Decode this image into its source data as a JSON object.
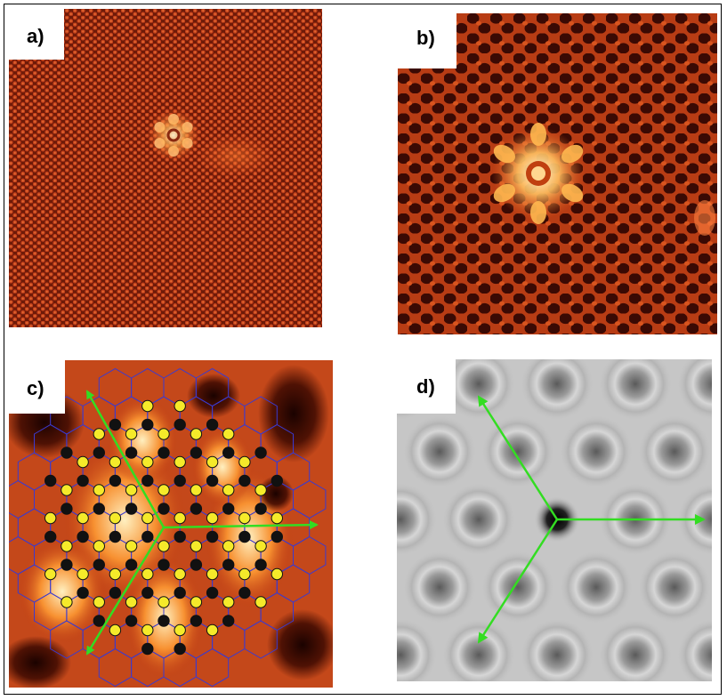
{
  "figure": {
    "panels": [
      {
        "id": "a",
        "label": "a)",
        "colormap": "afmhot"
      },
      {
        "id": "b",
        "label": "b)",
        "colormap": "afmhot"
      },
      {
        "id": "c",
        "label": "c)",
        "colormap": "afmhot",
        "lattice": "honeycomb",
        "atom_colors": {
          "sublattice_a": "#f5ea2a",
          "sublattice_b": "#111111"
        },
        "arrow_color": "#33dd22",
        "bond_color": "#3a3ad0"
      },
      {
        "id": "d",
        "label": "d)",
        "colormap": "grayscale",
        "arrow_color": "#33dd22"
      }
    ]
  }
}
